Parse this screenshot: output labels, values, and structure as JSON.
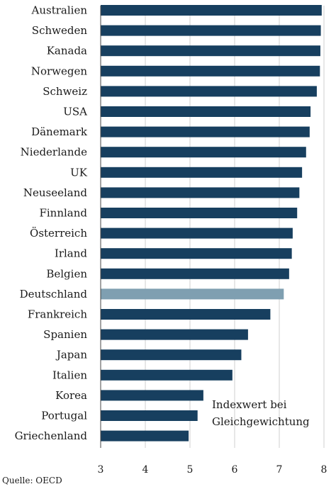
{
  "chart_data": {
    "type": "bar",
    "orientation": "horizontal",
    "categories": [
      "Australien",
      "Schweden",
      "Kanada",
      "Norwegen",
      "Schweiz",
      "USA",
      "Dänemark",
      "Niederlande",
      "UK",
      "Neuseeland",
      "Finnland",
      "Österreich",
      "Irland",
      "Belgien",
      "Deutschland",
      "Frankreich",
      "Spanien",
      "Japan",
      "Italien",
      "Korea",
      "Portugal",
      "Griechenland"
    ],
    "values": [
      7.95,
      7.93,
      7.92,
      7.91,
      7.84,
      7.7,
      7.68,
      7.6,
      7.51,
      7.45,
      7.4,
      7.3,
      7.28,
      7.22,
      7.1,
      6.8,
      6.3,
      6.15,
      5.95,
      5.3,
      5.17,
      4.97
    ],
    "highlight": "Deutschland",
    "xlim": [
      3,
      8
    ],
    "xticks": [
      3,
      4,
      5,
      6,
      7,
      8
    ],
    "colors": {
      "bar": "#173f5f",
      "highlight": "#7f9fb1",
      "grid": "#cfcfcf"
    },
    "annotation": [
      "Indexwert bei",
      "Gleichgewichtung"
    ],
    "grid": true
  },
  "source": "Quelle: OECD"
}
